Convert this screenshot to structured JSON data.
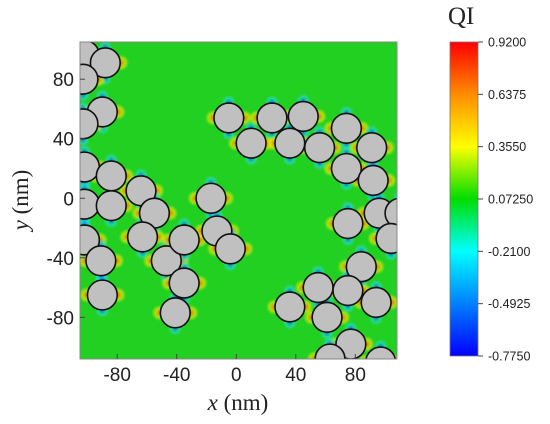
{
  "chart_data": {
    "type": "heatmap",
    "title": "",
    "xlabel_var": "x",
    "xlabel_unit": " (nm)",
    "ylabel_var": "y",
    "ylabel_unit": " (nm)",
    "xlim": [
      -105,
      108
    ],
    "ylim": [
      -108,
      105
    ],
    "x_ticks": [
      -80,
      -40,
      0,
      40,
      80
    ],
    "y_ticks": [
      80,
      40,
      0,
      -40,
      -80
    ],
    "x_tick_labels": [
      "-80",
      "-40",
      "0",
      "40",
      "80"
    ],
    "y_tick_labels": [
      "80",
      "40",
      "0",
      "-40",
      "-80"
    ],
    "particle_radius_nm": 10,
    "particle_color": "#c0c0c0",
    "background_color": "#22d022",
    "particles": [
      [
        -102,
        96
      ],
      [
        -88,
        91
      ],
      [
        -103,
        80
      ],
      [
        -90,
        58
      ],
      [
        -103,
        50
      ],
      [
        -102,
        21
      ],
      [
        -84,
        15
      ],
      [
        -102,
        -4
      ],
      [
        -84,
        -5
      ],
      [
        -64,
        5
      ],
      [
        -55,
        -10
      ],
      [
        -63,
        -26
      ],
      [
        -47,
        -42
      ],
      [
        -35,
        -28
      ],
      [
        -17,
        0
      ],
      [
        -13,
        -22
      ],
      [
        -4,
        -34
      ],
      [
        -5,
        54
      ],
      [
        10,
        37
      ],
      [
        24,
        54
      ],
      [
        36,
        37
      ],
      [
        45,
        55
      ],
      [
        56,
        34
      ],
      [
        74,
        47
      ],
      [
        74,
        20
      ],
      [
        91,
        34
      ],
      [
        92,
        12
      ],
      [
        96,
        -10
      ],
      [
        110,
        -10
      ],
      [
        104,
        -27
      ],
      [
        75,
        -17
      ],
      [
        84,
        -46
      ],
      [
        94,
        -70
      ],
      [
        75,
        -62
      ],
      [
        55,
        -60
      ],
      [
        36,
        -73
      ],
      [
        61,
        -80
      ],
      [
        77,
        -98
      ],
      [
        63,
        -108
      ],
      [
        97,
        -110
      ],
      [
        -102,
        -28
      ],
      [
        -91,
        -42
      ],
      [
        -90,
        -65
      ],
      [
        -35,
        -57
      ],
      [
        -41,
        -77
      ]
    ],
    "colorbar": {
      "title": "QI",
      "tick_labels": [
        "0.9200",
        "0.6375",
        "0.3550",
        "0.07250",
        "-0.2100",
        "-0.4925",
        "-0.7750"
      ],
      "colors": [
        "#ff0000",
        "#ff8c00",
        "#ffff00",
        "#00dd00",
        "#00ffff",
        "#0080ff",
        "#0000ff"
      ]
    }
  }
}
